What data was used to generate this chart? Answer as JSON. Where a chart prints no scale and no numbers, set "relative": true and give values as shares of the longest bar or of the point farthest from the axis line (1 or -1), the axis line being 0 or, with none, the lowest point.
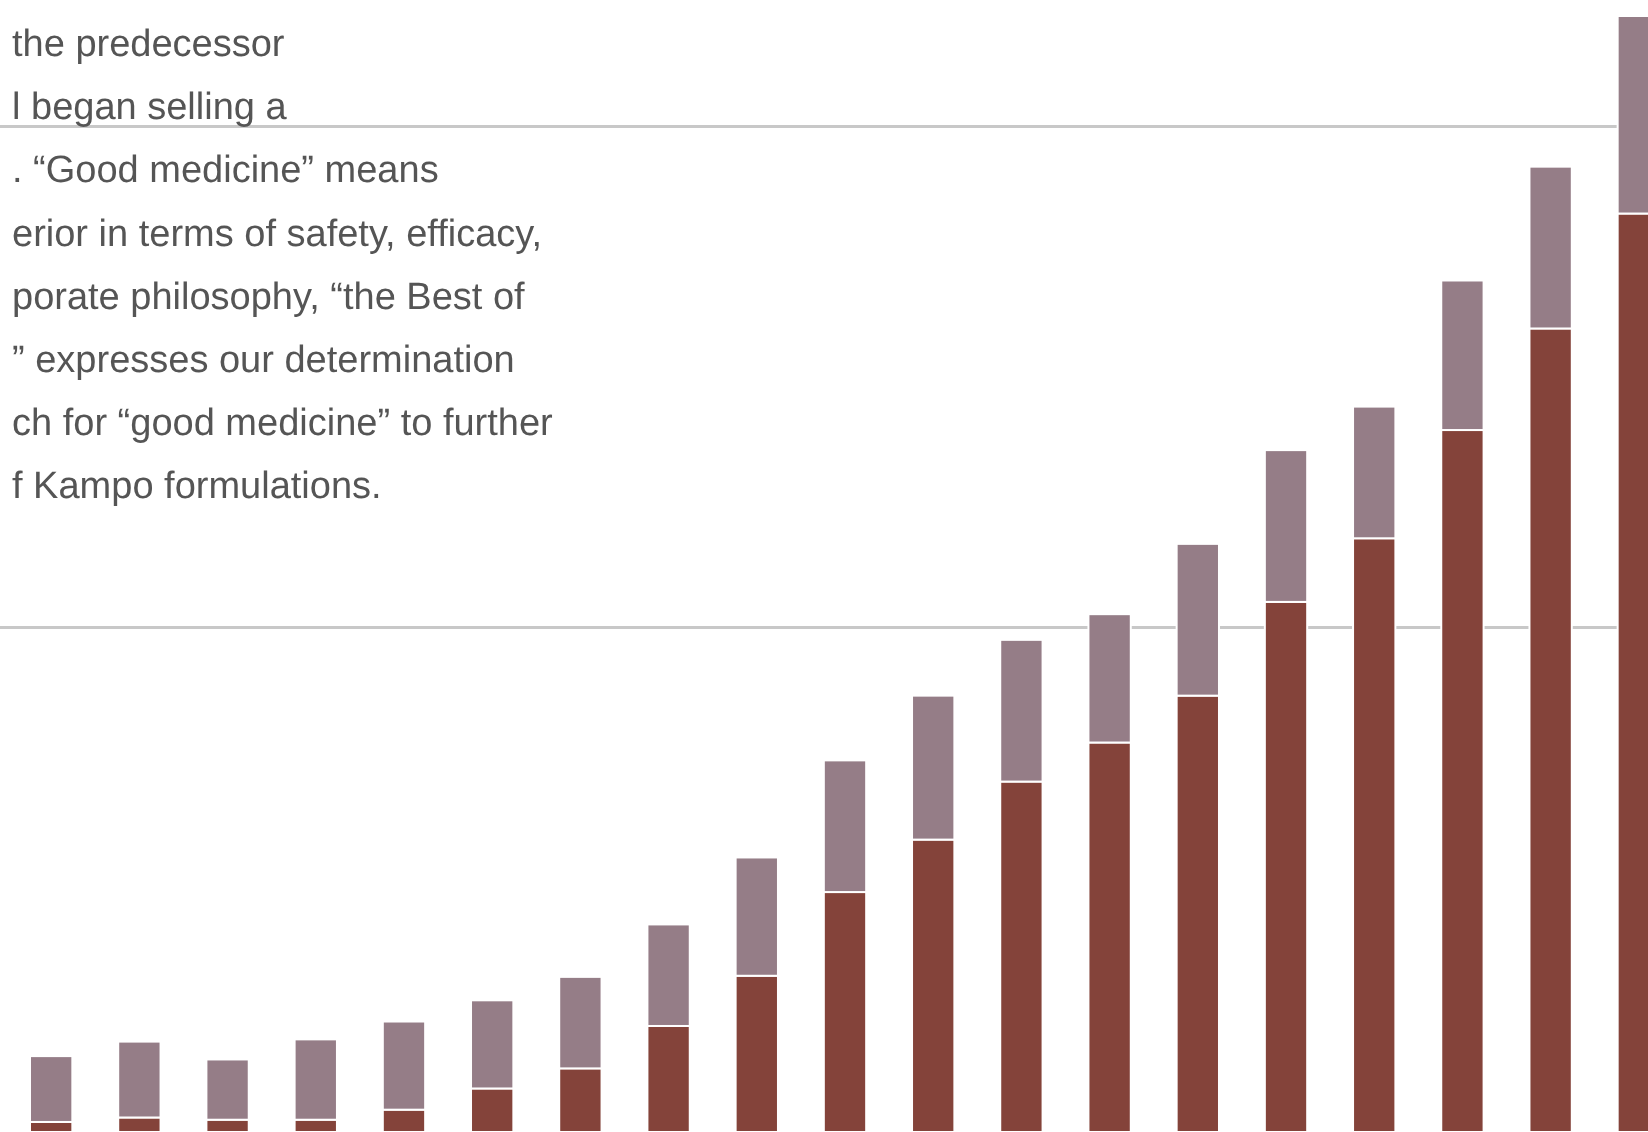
{
  "chart_data": {
    "type": "bar",
    "stacked": true,
    "relative": true,
    "categories": [
      null,
      null,
      null,
      null,
      null,
      null,
      null,
      null,
      null,
      null,
      null,
      null,
      null,
      null,
      null,
      null,
      null,
      null,
      null
    ],
    "series": [
      {
        "color": "#84433a",
        "values": [
          0.009,
          0.013,
          0.011,
          0.011,
          0.02,
          0.039,
          0.057,
          0.095,
          0.14,
          0.215,
          0.262,
          0.314,
          0.349,
          0.391,
          0.475,
          0.532,
          0.629,
          0.72,
          0.823
        ]
      },
      {
        "color": "#957d87",
        "values": [
          0.059,
          0.068,
          0.054,
          0.072,
          0.079,
          0.079,
          0.082,
          0.091,
          0.106,
          0.118,
          0.129,
          0.127,
          0.115,
          0.136,
          0.136,
          0.118,
          0.134,
          0.145,
          0.177
        ]
      }
    ],
    "ref_lines": [
      {
        "axis": "y",
        "value": 0.452,
        "color": "#c8c8c8"
      },
      {
        "axis": "y",
        "value": 0.901,
        "color": "#c8c8c8"
      }
    ],
    "annotations": [
      "the predecessor",
      "l began selling a",
      ". “Good medicine” means",
      "erior in terms of safety, efficacy,",
      "porate philosophy, “the Best of",
      "” expresses our determination",
      "ch for “good medicine” to further",
      "f Kampo formulations."
    ]
  }
}
